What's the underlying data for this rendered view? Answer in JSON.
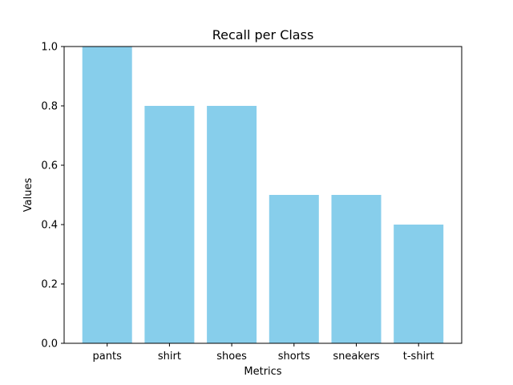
{
  "chart_data": {
    "type": "bar",
    "title": "Recall per Class",
    "xlabel": "Metrics",
    "ylabel": "Values",
    "categories": [
      "pants",
      "shirt",
      "shoes",
      "shorts",
      "sneakers",
      "t-shirt"
    ],
    "values": [
      1.0,
      0.8,
      0.8,
      0.5,
      0.5,
      0.4
    ],
    "ylim": [
      0,
      1.0
    ],
    "yticks": [
      "0.0",
      "0.2",
      "0.4",
      "0.6",
      "0.8",
      "1.0"
    ],
    "bar_color": "#87CEEB",
    "grid": false,
    "legend": "none"
  }
}
